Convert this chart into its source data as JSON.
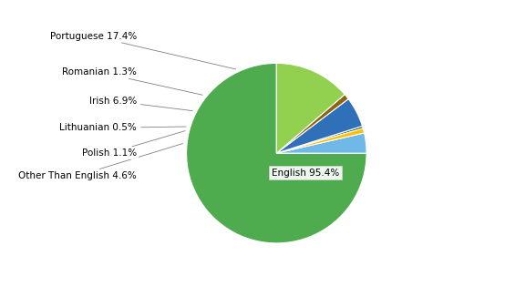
{
  "labels": [
    "English",
    "Other Than English",
    "Polish",
    "Lithuanian",
    "Irish",
    "Romanian",
    "Portuguese"
  ],
  "values": [
    95.4,
    4.6,
    1.1,
    0.5,
    6.9,
    1.3,
    17.4
  ],
  "colors": [
    "#4eac4e",
    "#70b8e8",
    "#ffc000",
    "#1a5c2a",
    "#3070b8",
    "#8b6410",
    "#92d050"
  ],
  "legend_labels": [
    "English",
    "Other Than English",
    "Polish",
    "Lithuanian",
    "Irish",
    "Romanian",
    "Portuguese"
  ],
  "background_color": "#ffffff",
  "startangle": 90,
  "label_fontsize": 7.5,
  "legend_fontsize": 7.5
}
